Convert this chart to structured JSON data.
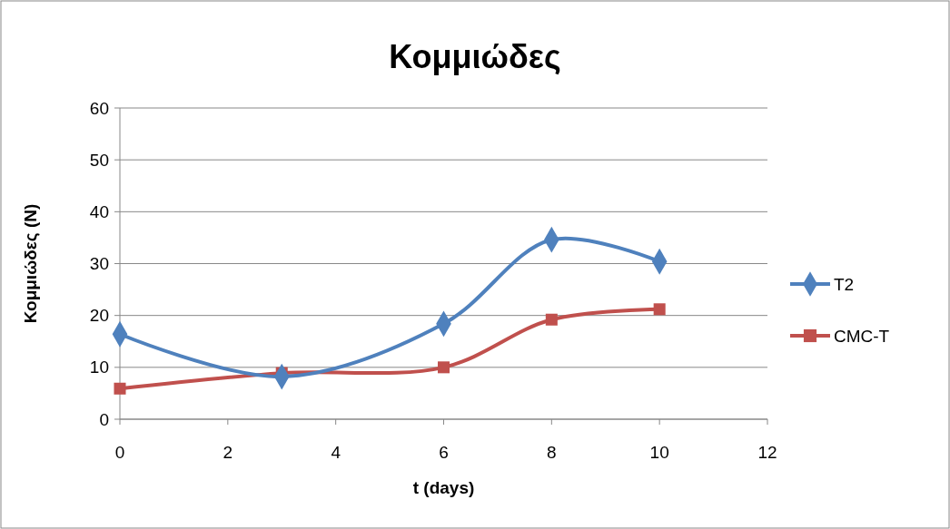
{
  "chart_data": {
    "type": "line",
    "title": "Κομμιώδες",
    "xlabel": "t (days)",
    "ylabel": "Κομμιώδες (N)",
    "x": [
      0,
      3,
      6,
      8,
      10
    ],
    "series": [
      {
        "name": "T2",
        "color": "#4f81bd",
        "marker": "diamond",
        "values": [
          16.4,
          8.2,
          18.4,
          34.6,
          30.4
        ]
      },
      {
        "name": "CMC-T",
        "color": "#c0504d",
        "marker": "square",
        "values": [
          5.9,
          8.9,
          10.0,
          19.2,
          21.2
        ]
      }
    ],
    "xlim": [
      0,
      12
    ],
    "xticks": [
      0,
      2,
      4,
      6,
      8,
      10,
      12
    ],
    "ylim": [
      0,
      60
    ],
    "yticks": [
      0,
      10,
      20,
      30,
      40,
      50,
      60
    ],
    "grid": "y",
    "legend": "right"
  }
}
